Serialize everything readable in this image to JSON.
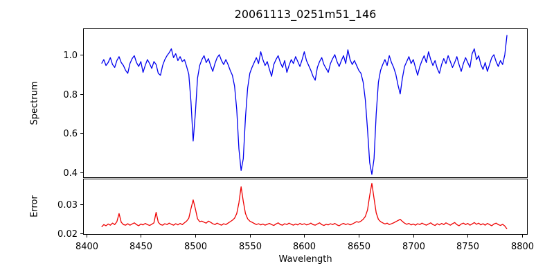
{
  "chart_data": {
    "type": "line",
    "title": "20061113_0251m51_146",
    "xlabel": "Wavelength",
    "xlim": [
      8397,
      8805
    ],
    "xticks": {
      "values": [
        8400,
        8450,
        8500,
        8550,
        8600,
        8650,
        8700,
        8750,
        8800
      ],
      "labels": [
        "8400",
        "8450",
        "8500",
        "8550",
        "8600",
        "8650",
        "8700",
        "8750",
        "8800"
      ]
    },
    "grid": false,
    "legend": "none",
    "x": [
      8414,
      8416,
      8418,
      8420,
      8422,
      8424,
      8426,
      8428,
      8430,
      8432,
      8434,
      8436,
      8438,
      8440,
      8442,
      8444,
      8446,
      8448,
      8450,
      8452,
      8454,
      8456,
      8458,
      8460,
      8462,
      8464,
      8466,
      8468,
      8470,
      8472,
      8474,
      8476,
      8478,
      8480,
      8482,
      8484,
      8486,
      8488,
      8490,
      8492,
      8494,
      8496,
      8498,
      8500,
      8502,
      8504,
      8506,
      8508,
      8510,
      8512,
      8514,
      8516,
      8518,
      8520,
      8522,
      8524,
      8526,
      8528,
      8530,
      8532,
      8534,
      8536,
      8538,
      8540,
      8542,
      8544,
      8546,
      8548,
      8550,
      8552,
      8554,
      8556,
      8558,
      8560,
      8562,
      8564,
      8566,
      8568,
      8570,
      8572,
      8574,
      8576,
      8578,
      8580,
      8582,
      8584,
      8586,
      8588,
      8590,
      8592,
      8594,
      8596,
      8598,
      8600,
      8602,
      8604,
      8606,
      8608,
      8610,
      8612,
      8614,
      8616,
      8618,
      8620,
      8622,
      8624,
      8626,
      8628,
      8630,
      8632,
      8634,
      8636,
      8638,
      8640,
      8642,
      8644,
      8646,
      8648,
      8650,
      8652,
      8654,
      8656,
      8658,
      8660,
      8662,
      8664,
      8666,
      8668,
      8670,
      8672,
      8674,
      8676,
      8678,
      8680,
      8682,
      8684,
      8686,
      8688,
      8690,
      8692,
      8694,
      8696,
      8698,
      8700,
      8702,
      8704,
      8706,
      8708,
      8710,
      8712,
      8714,
      8716,
      8718,
      8720,
      8722,
      8724,
      8726,
      8728,
      8730,
      8732,
      8734,
      8736,
      8738,
      8740,
      8742,
      8744,
      8746,
      8748,
      8750,
      8752,
      8754,
      8756,
      8758,
      8760,
      8762,
      8764,
      8766,
      8768,
      8770,
      8772,
      8774,
      8776,
      8778,
      8780,
      8782,
      8784,
      8786
    ],
    "subplots": [
      {
        "name": "spectrum",
        "ylabel": "Spectrum",
        "line_color": "#0000ee",
        "ylim": [
          0.372,
          1.134
        ],
        "yticks": {
          "values": [
            0.4,
            0.6,
            0.8,
            1.0
          ],
          "labels": [
            "0.4",
            "0.6",
            "0.8",
            "1.0"
          ]
        },
        "absorption_line_centers": [
          8498,
          8542,
          8662
        ],
        "y": [
          0.955,
          0.975,
          0.945,
          0.96,
          0.985,
          0.95,
          0.935,
          0.97,
          0.99,
          0.96,
          0.945,
          0.92,
          0.905,
          0.955,
          0.98,
          0.995,
          0.96,
          0.94,
          0.965,
          0.91,
          0.945,
          0.975,
          0.955,
          0.93,
          0.965,
          0.95,
          0.905,
          0.895,
          0.945,
          0.975,
          0.995,
          1.01,
          1.03,
          0.985,
          1.005,
          0.97,
          0.99,
          0.965,
          0.975,
          0.94,
          0.9,
          0.76,
          0.56,
          0.7,
          0.88,
          0.945,
          0.975,
          0.995,
          0.96,
          0.98,
          0.945,
          0.915,
          0.955,
          0.985,
          1.0,
          0.97,
          0.95,
          0.975,
          0.95,
          0.92,
          0.895,
          0.84,
          0.72,
          0.52,
          0.41,
          0.47,
          0.68,
          0.83,
          0.905,
          0.935,
          0.96,
          0.985,
          0.955,
          1.015,
          0.975,
          0.945,
          0.965,
          0.925,
          0.89,
          0.95,
          0.975,
          0.995,
          0.96,
          0.935,
          0.97,
          0.91,
          0.945,
          0.975,
          0.955,
          0.99,
          0.965,
          0.94,
          0.975,
          1.015,
          0.97,
          0.945,
          0.92,
          0.89,
          0.87,
          0.935,
          0.965,
          0.985,
          0.95,
          0.93,
          0.91,
          0.955,
          0.98,
          1.0,
          0.965,
          0.94,
          0.97,
          0.995,
          0.955,
          1.025,
          0.975,
          0.95,
          0.97,
          0.945,
          0.92,
          0.905,
          0.86,
          0.77,
          0.62,
          0.45,
          0.39,
          0.47,
          0.7,
          0.86,
          0.92,
          0.95,
          0.975,
          0.945,
          0.995,
          0.96,
          0.935,
          0.9,
          0.845,
          0.8,
          0.88,
          0.94,
          0.965,
          0.99,
          0.955,
          0.975,
          0.935,
          0.895,
          0.94,
          0.97,
          0.995,
          0.96,
          1.015,
          0.975,
          0.945,
          0.97,
          0.93,
          0.905,
          0.95,
          0.98,
          0.955,
          0.995,
          0.965,
          0.935,
          0.96,
          0.99,
          0.95,
          0.915,
          0.955,
          0.985,
          0.96,
          0.935,
          1.005,
          1.03,
          0.975,
          0.995,
          0.95,
          0.925,
          0.96,
          0.915,
          0.95,
          0.985,
          1.0,
          0.965,
          0.94,
          0.97,
          0.95,
          1.0,
          1.1
        ]
      },
      {
        "name": "error",
        "ylabel": "Error",
        "line_color": "#ee0000",
        "ylim": [
          0.0195,
          0.0388
        ],
        "yticks": {
          "values": [
            0.02,
            0.03
          ],
          "labels": [
            "0.02",
            "0.03"
          ]
        },
        "y": [
          0.0222,
          0.023,
          0.0226,
          0.0232,
          0.0228,
          0.0235,
          0.023,
          0.024,
          0.0268,
          0.0238,
          0.023,
          0.0228,
          0.0233,
          0.0228,
          0.0232,
          0.0236,
          0.023,
          0.0226,
          0.0232,
          0.0229,
          0.0234,
          0.023,
          0.0227,
          0.0231,
          0.0236,
          0.0272,
          0.0238,
          0.023,
          0.0228,
          0.0233,
          0.023,
          0.0235,
          0.0231,
          0.0228,
          0.0233,
          0.0229,
          0.0234,
          0.023,
          0.0236,
          0.0242,
          0.0252,
          0.0285,
          0.0315,
          0.0285,
          0.025,
          0.024,
          0.0242,
          0.0238,
          0.0235,
          0.0242,
          0.0238,
          0.0233,
          0.023,
          0.0235,
          0.0231,
          0.0228,
          0.0233,
          0.023,
          0.0235,
          0.024,
          0.0245,
          0.0252,
          0.0268,
          0.0305,
          0.036,
          0.031,
          0.0268,
          0.025,
          0.0242,
          0.0238,
          0.0234,
          0.023,
          0.0233,
          0.0229,
          0.0232,
          0.0228,
          0.0231,
          0.0234,
          0.023,
          0.0227,
          0.0232,
          0.0236,
          0.023,
          0.0228,
          0.0233,
          0.023,
          0.0235,
          0.0231,
          0.0228,
          0.0232,
          0.0229,
          0.0234,
          0.023,
          0.0233,
          0.0229,
          0.0231,
          0.0235,
          0.023,
          0.0228,
          0.0232,
          0.0236,
          0.023,
          0.0227,
          0.0231,
          0.0229,
          0.0233,
          0.023,
          0.0234,
          0.0229,
          0.0226,
          0.0231,
          0.0234,
          0.023,
          0.0233,
          0.0229,
          0.0232,
          0.0236,
          0.024,
          0.0238,
          0.0242,
          0.0248,
          0.0258,
          0.028,
          0.033,
          0.0372,
          0.032,
          0.027,
          0.0248,
          0.024,
          0.0236,
          0.0232,
          0.0235,
          0.023,
          0.0233,
          0.0236,
          0.024,
          0.0244,
          0.0248,
          0.0241,
          0.0235,
          0.0231,
          0.0234,
          0.0229,
          0.0232,
          0.0228,
          0.0233,
          0.023,
          0.0235,
          0.0231,
          0.0228,
          0.0232,
          0.0236,
          0.023,
          0.0227,
          0.0233,
          0.0229,
          0.0234,
          0.023,
          0.0236,
          0.0232,
          0.0228,
          0.0233,
          0.0237,
          0.023,
          0.0226,
          0.0232,
          0.0235,
          0.023,
          0.0234,
          0.0228,
          0.0232,
          0.0237,
          0.0231,
          0.0235,
          0.0229,
          0.0233,
          0.0228,
          0.0234,
          0.023,
          0.0226,
          0.0232,
          0.0235,
          0.023,
          0.0227,
          0.0231,
          0.0225,
          0.0215
        ]
      }
    ]
  }
}
